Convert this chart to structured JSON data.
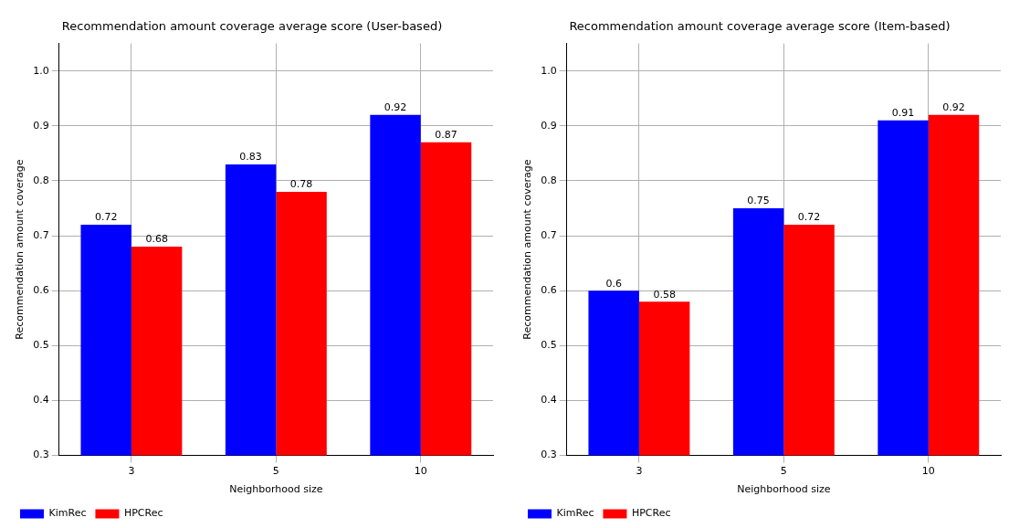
{
  "chart_data": [
    {
      "type": "bar",
      "title": "Recommendation amount coverage average score (User-based)",
      "xlabel": "Neighborhood size",
      "ylabel": "Recommendation amount coverage",
      "categories": [
        "3",
        "5",
        "10"
      ],
      "series": [
        {
          "name": "KimRec",
          "color": "#0000ff",
          "values": [
            0.72,
            0.83,
            0.92
          ]
        },
        {
          "name": "HPCRec",
          "color": "#ff0000",
          "values": [
            0.68,
            0.78,
            0.87
          ]
        }
      ],
      "ylim": [
        0.3,
        1.05
      ],
      "yticks": [
        0.3,
        0.4,
        0.5,
        0.6,
        0.7,
        0.8,
        0.9,
        {
          "value": 1,
          "label": "1.0"
        }
      ],
      "grid": true,
      "legend": "bottom left",
      "data_labels": true
    },
    {
      "type": "bar",
      "title": "Recommendation amount coverage average score (Item-based)",
      "xlabel": "Neighborhood size",
      "ylabel": "Recommendation amount coverage",
      "categories": [
        "3",
        "5",
        "10"
      ],
      "series": [
        {
          "name": "KimRec",
          "color": "#0000ff",
          "values": [
            0.6,
            0.75,
            0.91
          ]
        },
        {
          "name": "HPCRec",
          "color": "#ff0000",
          "values": [
            0.58,
            0.72,
            0.92
          ]
        }
      ],
      "ylim": [
        0.3,
        1.05
      ],
      "yticks": [
        0.3,
        0.4,
        0.5,
        0.6,
        0.7,
        0.8,
        0.9,
        {
          "value": 1,
          "label": "1.0"
        }
      ],
      "grid": true,
      "legend": "bottom left",
      "data_labels": true
    }
  ]
}
